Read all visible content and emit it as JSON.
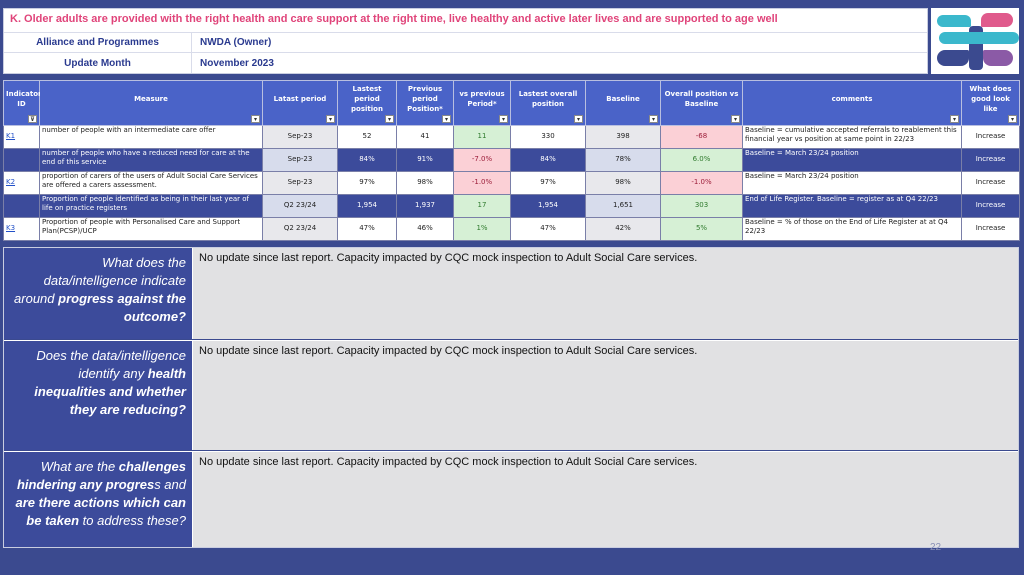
{
  "header": {
    "title": "K. Older adults are provided with the right health and care support at the right time, live healthy and active later lives and are supported to age well",
    "rows": [
      {
        "label": "Alliance and Programmes",
        "value": "NWDA (Owner)"
      },
      {
        "label": "Update Month",
        "value": "November 2023"
      }
    ]
  },
  "logo": {
    "icon": "organisation-logo",
    "colors": [
      "#3bb8cc",
      "#e05a8c",
      "#8b5aa6",
      "#3b4a8f"
    ]
  },
  "table": {
    "columns": [
      "Indicator ID",
      "Measure",
      "Latast  period",
      "Lastest period position",
      "Previous period Position*",
      "vs previous Period*",
      "Lastest overall position",
      "Baseline",
      "Overall position vs Baseline",
      "comments",
      "What does good look like"
    ],
    "rows": [
      {
        "style": "white",
        "id": "K1",
        "measure": "number of people with an intermediate care offer",
        "period": "Sep-23",
        "latest": "52",
        "previous": "41",
        "vs_prev": "11",
        "vs_prev_status": "green",
        "overall": "330",
        "baseline": "398",
        "vs_base": "-68",
        "vs_base_status": "red",
        "comments": "Baseline = cumulative accepted referrals to reablement this financial year vs position at same point in 22/23",
        "good": "Increase"
      },
      {
        "style": "blue",
        "id": "",
        "measure": "number of people who have a reduced need for care at the end of this service",
        "period": "Sep-23",
        "latest": "84%",
        "previous": "91%",
        "vs_prev": "-7.0%",
        "vs_prev_status": "red",
        "overall": "84%",
        "baseline": "78%",
        "vs_base": "6.0%",
        "vs_base_status": "green",
        "comments": "Baseline = March 23/24 position",
        "good": "Increase"
      },
      {
        "style": "white",
        "id": "K2",
        "measure": "proportion of carers of the users of Adult Social Care Services are offered a carers assessment.",
        "period": "Sep-23",
        "latest": "97%",
        "previous": "98%",
        "vs_prev": "-1.0%",
        "vs_prev_status": "red",
        "overall": "97%",
        "baseline": "98%",
        "vs_base": "-1.0%",
        "vs_base_status": "red",
        "comments": "Baseline = March 23/24 position",
        "good": "Increase"
      },
      {
        "style": "blue",
        "id": "",
        "measure": "Proportion of people identified as being in their last year of life on practice registers",
        "period": "Q2 23/24",
        "latest": "1,954",
        "previous": "1,937",
        "vs_prev": "17",
        "vs_prev_status": "green",
        "overall": "1,954",
        "baseline": "1,651",
        "vs_base": "303",
        "vs_base_status": "green",
        "comments": "End of Life Register. Baseline = register as at Q4 22/23",
        "good": "Increase"
      },
      {
        "style": "white",
        "id": "K3",
        "measure": "Proportion of people with Personalised Care and Support Plan(PCSP)/UCP",
        "period": "Q2 23/24",
        "latest": "47%",
        "previous": "46%",
        "vs_prev": "1%",
        "vs_prev_status": "green",
        "overall": "47%",
        "baseline": "42%",
        "vs_base": "5%",
        "vs_base_status": "green",
        "comments": "Baseline = % of those on the End of Life Register at at Q4 22/23",
        "good": "Increase"
      }
    ]
  },
  "questions": [
    {
      "q_parts": [
        "What does the data/intelligence indicate around ",
        "progress against the outcome?",
        ""
      ],
      "answer": "No update since last report. Capacity impacted by CQC mock inspection to Adult Social Care services."
    },
    {
      "q_parts": [
        "Does the data/intelligence identify any ",
        "health inequalities and whether they are reducing?",
        ""
      ],
      "answer": "No update since last report. Capacity impacted by CQC mock inspection to Adult Social Care services."
    },
    {
      "q_parts": [
        "What are the ",
        "challenges hindering any progres",
        "s and ",
        "are there actions which can be taken",
        " to address these?"
      ],
      "answer": "No update since last report. Capacity impacted by CQC mock inspection to Adult Social Care services."
    }
  ],
  "page_number": "22"
}
